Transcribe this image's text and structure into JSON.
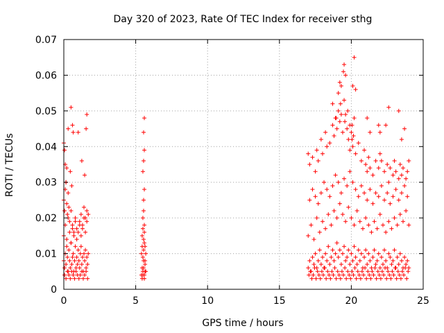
{
  "chart_data": {
    "type": "scatter",
    "title": "Day 320 of 2023, Rate Of TEC Index for receiver sthg",
    "xlabel": "GPS time / hours",
    "ylabel": "ROTI / TECUs",
    "xlim": [
      0,
      25
    ],
    "ylim": [
      0,
      0.07
    ],
    "x_ticks": [
      0,
      5,
      10,
      15,
      20,
      25
    ],
    "x_tick_labels": [
      "0",
      "5",
      "10",
      "15",
      "20",
      "25"
    ],
    "y_ticks": [
      0,
      0.01,
      0.02,
      0.03,
      0.04,
      0.05,
      0.06,
      0.07
    ],
    "y_tick_labels": [
      "0",
      "0.01",
      "0.02",
      "0.03",
      "0.04",
      "0.05",
      "0.06",
      "0.07"
    ],
    "grid": true,
    "marker": "+",
    "color": "#ff0000",
    "series": [
      {
        "name": "ROTI",
        "x": [
          0.0,
          0.05,
          0.1,
          0.15,
          0.2,
          0.25,
          0.3,
          0.35,
          0.4,
          0.45,
          0.5,
          0.55,
          0.6,
          0.65,
          0.7,
          0.75,
          0.8,
          0.85,
          0.9,
          0.95,
          1.0,
          1.05,
          1.1,
          1.15,
          1.2,
          1.25,
          1.3,
          1.35,
          1.4,
          1.45,
          1.5,
          1.55,
          1.6,
          1.65,
          1.7,
          0.0,
          0.1,
          0.2,
          0.3,
          0.4,
          0.5,
          0.6,
          0.7,
          0.8,
          0.9,
          1.0,
          1.1,
          1.2,
          1.3,
          1.4,
          1.5,
          1.6,
          1.7,
          0.05,
          0.15,
          0.25,
          0.35,
          0.45,
          0.55,
          0.65,
          0.75,
          0.85,
          0.95,
          1.05,
          1.15,
          1.25,
          1.35,
          1.45,
          1.55,
          1.65,
          0.0,
          0.05,
          0.1,
          0.15,
          0.2,
          0.25,
          0.3,
          0.35,
          0.4,
          0.5,
          0.6,
          0.7,
          0.8,
          0.9,
          1.1,
          1.2,
          1.3,
          1.4,
          1.5,
          1.6,
          0.0,
          0.1,
          0.2,
          0.3,
          0.5,
          0.6,
          0.65,
          1.0,
          1.25,
          1.45,
          1.55,
          1.6,
          0.05,
          0.15,
          0.55,
          0.45,
          5.4,
          5.45,
          5.5,
          5.55,
          5.6,
          5.65,
          5.7,
          5.4,
          5.45,
          5.5,
          5.55,
          5.6,
          5.65,
          5.7,
          5.45,
          5.5,
          5.55,
          5.6,
          5.65,
          5.5,
          5.55,
          5.6,
          5.45,
          5.5,
          5.55,
          5.6,
          5.65,
          5.55,
          5.6,
          5.5,
          5.55,
          5.6,
          5.55,
          5.6,
          17.0,
          17.1,
          17.2,
          17.3,
          17.4,
          17.5,
          17.6,
          17.7,
          17.8,
          17.9,
          18.0,
          18.1,
          18.2,
          18.3,
          18.4,
          18.5,
          18.6,
          18.7,
          18.8,
          18.9,
          19.0,
          19.1,
          19.2,
          19.3,
          19.4,
          19.5,
          19.6,
          19.7,
          19.8,
          19.9,
          20.0,
          20.1,
          20.2,
          20.3,
          20.4,
          20.5,
          20.6,
          20.7,
          20.8,
          20.9,
          21.0,
          21.1,
          21.2,
          21.3,
          21.4,
          21.5,
          21.6,
          21.7,
          21.8,
          21.9,
          22.0,
          22.1,
          22.2,
          22.3,
          22.4,
          22.5,
          22.6,
          22.7,
          22.8,
          22.9,
          23.0,
          23.1,
          23.2,
          23.3,
          23.4,
          23.5,
          23.6,
          23.7,
          23.8,
          23.9,
          24.0,
          17.05,
          17.15,
          17.25,
          17.35,
          17.45,
          17.55,
          17.65,
          17.75,
          17.85,
          17.95,
          18.05,
          18.15,
          18.25,
          18.35,
          18.45,
          18.55,
          18.65,
          18.75,
          18.85,
          18.95,
          19.05,
          19.15,
          19.25,
          19.35,
          19.45,
          19.55,
          19.65,
          19.75,
          19.85,
          19.95,
          20.05,
          20.15,
          20.25,
          20.35,
          20.45,
          20.55,
          20.65,
          20.75,
          20.85,
          20.95,
          21.05,
          21.15,
          21.25,
          21.35,
          21.45,
          21.55,
          21.65,
          21.75,
          21.85,
          21.95,
          22.05,
          22.15,
          22.25,
          22.35,
          22.45,
          22.55,
          22.65,
          22.75,
          22.85,
          22.95,
          23.05,
          23.15,
          23.25,
          23.35,
          23.45,
          23.55,
          23.65,
          23.75,
          23.85,
          23.95,
          17.0,
          17.2,
          17.4,
          17.6,
          17.8,
          18.0,
          18.2,
          18.4,
          18.6,
          18.8,
          19.0,
          19.2,
          19.4,
          19.6,
          19.8,
          20.0,
          20.2,
          20.4,
          20.6,
          20.8,
          21.0,
          21.2,
          21.4,
          21.6,
          21.8,
          22.0,
          22.2,
          22.4,
          22.6,
          22.8,
          23.0,
          23.2,
          23.4,
          23.6,
          23.8,
          24.0,
          17.1,
          17.3,
          17.5,
          17.7,
          17.9,
          18.1,
          18.3,
          18.5,
          18.7,
          18.9,
          19.1,
          19.3,
          19.5,
          19.7,
          19.9,
          20.1,
          20.3,
          20.5,
          20.7,
          20.9,
          21.1,
          21.3,
          21.5,
          21.7,
          21.9,
          22.1,
          22.3,
          22.5,
          22.7,
          22.9,
          23.1,
          23.3,
          23.5,
          23.7,
          23.9,
          17.0,
          17.1,
          17.3,
          17.5,
          17.6,
          17.7,
          17.9,
          18.0,
          18.2,
          18.3,
          18.5,
          18.7,
          18.8,
          18.9,
          19.0,
          19.1,
          19.2,
          19.25,
          19.3,
          19.4,
          19.5,
          19.55,
          19.6,
          19.7,
          19.8,
          19.9,
          20.0,
          20.05,
          20.1,
          20.15,
          20.2,
          20.3,
          20.5,
          20.7,
          20.9,
          21.0,
          21.1,
          21.2,
          21.3,
          21.5,
          21.7,
          21.9,
          22.0,
          22.1,
          22.3,
          22.5,
          22.6,
          22.7,
          22.9,
          23.0,
          23.1,
          23.3,
          23.4,
          23.5,
          23.6,
          23.8,
          23.9,
          24.0,
          18.7,
          19.1,
          19.3,
          19.5,
          19.6,
          19.75,
          19.9,
          20.1,
          20.2,
          20.3,
          21.1,
          21.3,
          21.9,
          22.0,
          22.4,
          22.6,
          23.3,
          23.5,
          23.7,
          18.95,
          19.2,
          19.45,
          20.05
        ],
        "y": [
          0.008,
          0.006,
          0.01,
          0.007,
          0.012,
          0.009,
          0.005,
          0.011,
          0.008,
          0.006,
          0.013,
          0.007,
          0.009,
          0.01,
          0.005,
          0.008,
          0.012,
          0.006,
          0.009,
          0.007,
          0.011,
          0.008,
          0.006,
          0.01,
          0.012,
          0.007,
          0.009,
          0.005,
          0.01,
          0.008,
          0.011,
          0.006,
          0.009,
          0.007,
          0.01,
          0.015,
          0.018,
          0.014,
          0.02,
          0.016,
          0.013,
          0.017,
          0.015,
          0.019,
          0.014,
          0.016,
          0.018,
          0.015,
          0.017,
          0.02,
          0.016,
          0.019,
          0.021,
          0.004,
          0.003,
          0.005,
          0.004,
          0.003,
          0.005,
          0.004,
          0.003,
          0.005,
          0.004,
          0.003,
          0.004,
          0.005,
          0.003,
          0.004,
          0.005,
          0.003,
          0.025,
          0.022,
          0.028,
          0.03,
          0.024,
          0.021,
          0.027,
          0.023,
          0.019,
          0.022,
          0.018,
          0.016,
          0.02,
          0.017,
          0.019,
          0.021,
          0.018,
          0.023,
          0.02,
          0.022,
          0.041,
          0.035,
          0.034,
          0.045,
          0.051,
          0.046,
          0.044,
          0.044,
          0.036,
          0.032,
          0.045,
          0.049,
          0.039,
          0.03,
          0.029,
          0.033,
          0.004,
          0.006,
          0.005,
          0.008,
          0.004,
          0.007,
          0.005,
          0.01,
          0.012,
          0.009,
          0.011,
          0.013,
          0.008,
          0.01,
          0.015,
          0.017,
          0.014,
          0.016,
          0.012,
          0.02,
          0.022,
          0.018,
          0.003,
          0.004,
          0.006,
          0.003,
          0.005,
          0.025,
          0.028,
          0.033,
          0.036,
          0.039,
          0.044,
          0.048,
          0.006,
          0.008,
          0.005,
          0.009,
          0.007,
          0.01,
          0.006,
          0.008,
          0.011,
          0.007,
          0.009,
          0.006,
          0.01,
          0.008,
          0.012,
          0.007,
          0.009,
          0.011,
          0.008,
          0.01,
          0.013,
          0.009,
          0.011,
          0.007,
          0.01,
          0.012,
          0.008,
          0.009,
          0.011,
          0.007,
          0.01,
          0.008,
          0.012,
          0.009,
          0.007,
          0.011,
          0.008,
          0.01,
          0.006,
          0.009,
          0.011,
          0.007,
          0.01,
          0.008,
          0.006,
          0.009,
          0.011,
          0.007,
          0.008,
          0.01,
          0.006,
          0.009,
          0.007,
          0.011,
          0.008,
          0.006,
          0.01,
          0.009,
          0.007,
          0.008,
          0.011,
          0.006,
          0.009,
          0.007,
          0.01,
          0.008,
          0.006,
          0.009,
          0.007,
          0.008,
          0.006,
          0.004,
          0.005,
          0.003,
          0.004,
          0.006,
          0.003,
          0.005,
          0.004,
          0.003,
          0.005,
          0.004,
          0.006,
          0.003,
          0.005,
          0.004,
          0.003,
          0.005,
          0.004,
          0.006,
          0.003,
          0.005,
          0.004,
          0.003,
          0.005,
          0.004,
          0.006,
          0.003,
          0.005,
          0.004,
          0.003,
          0.005,
          0.004,
          0.006,
          0.003,
          0.005,
          0.004,
          0.003,
          0.005,
          0.004,
          0.006,
          0.003,
          0.005,
          0.004,
          0.003,
          0.005,
          0.004,
          0.006,
          0.003,
          0.005,
          0.004,
          0.003,
          0.005,
          0.004,
          0.006,
          0.003,
          0.005,
          0.004,
          0.003,
          0.005,
          0.004,
          0.006,
          0.003,
          0.005,
          0.004,
          0.003,
          0.005,
          0.004,
          0.006,
          0.003,
          0.005,
          0.015,
          0.018,
          0.014,
          0.02,
          0.016,
          0.019,
          0.017,
          0.021,
          0.018,
          0.022,
          0.02,
          0.024,
          0.021,
          0.019,
          0.023,
          0.02,
          0.018,
          0.022,
          0.019,
          0.017,
          0.02,
          0.018,
          0.016,
          0.019,
          0.017,
          0.021,
          0.018,
          0.016,
          0.019,
          0.017,
          0.02,
          0.018,
          0.021,
          0.019,
          0.022,
          0.018,
          0.025,
          0.028,
          0.026,
          0.024,
          0.027,
          0.03,
          0.028,
          0.026,
          0.029,
          0.032,
          0.03,
          0.027,
          0.031,
          0.029,
          0.033,
          0.03,
          0.028,
          0.026,
          0.029,
          0.027,
          0.025,
          0.028,
          0.024,
          0.027,
          0.026,
          0.029,
          0.025,
          0.027,
          0.024,
          0.026,
          0.028,
          0.025,
          0.027,
          0.029,
          0.026,
          0.038,
          0.035,
          0.037,
          0.033,
          0.039,
          0.036,
          0.042,
          0.038,
          0.044,
          0.04,
          0.041,
          0.046,
          0.043,
          0.048,
          0.045,
          0.05,
          0.047,
          0.052,
          0.049,
          0.044,
          0.053,
          0.047,
          0.049,
          0.045,
          0.042,
          0.039,
          0.044,
          0.046,
          0.04,
          0.043,
          0.048,
          0.038,
          0.041,
          0.036,
          0.039,
          0.035,
          0.033,
          0.037,
          0.034,
          0.032,
          0.036,
          0.034,
          0.038,
          0.036,
          0.033,
          0.035,
          0.03,
          0.034,
          0.032,
          0.036,
          0.033,
          0.031,
          0.035,
          0.032,
          0.034,
          0.031,
          0.033,
          0.036,
          0.052,
          0.055,
          0.057,
          0.063,
          0.06,
          0.05,
          0.046,
          0.057,
          0.065,
          0.056,
          0.048,
          0.044,
          0.046,
          0.044,
          0.046,
          0.051,
          0.05,
          0.042,
          0.045,
          0.048,
          0.058,
          0.061,
          0.042
        ]
      }
    ]
  }
}
